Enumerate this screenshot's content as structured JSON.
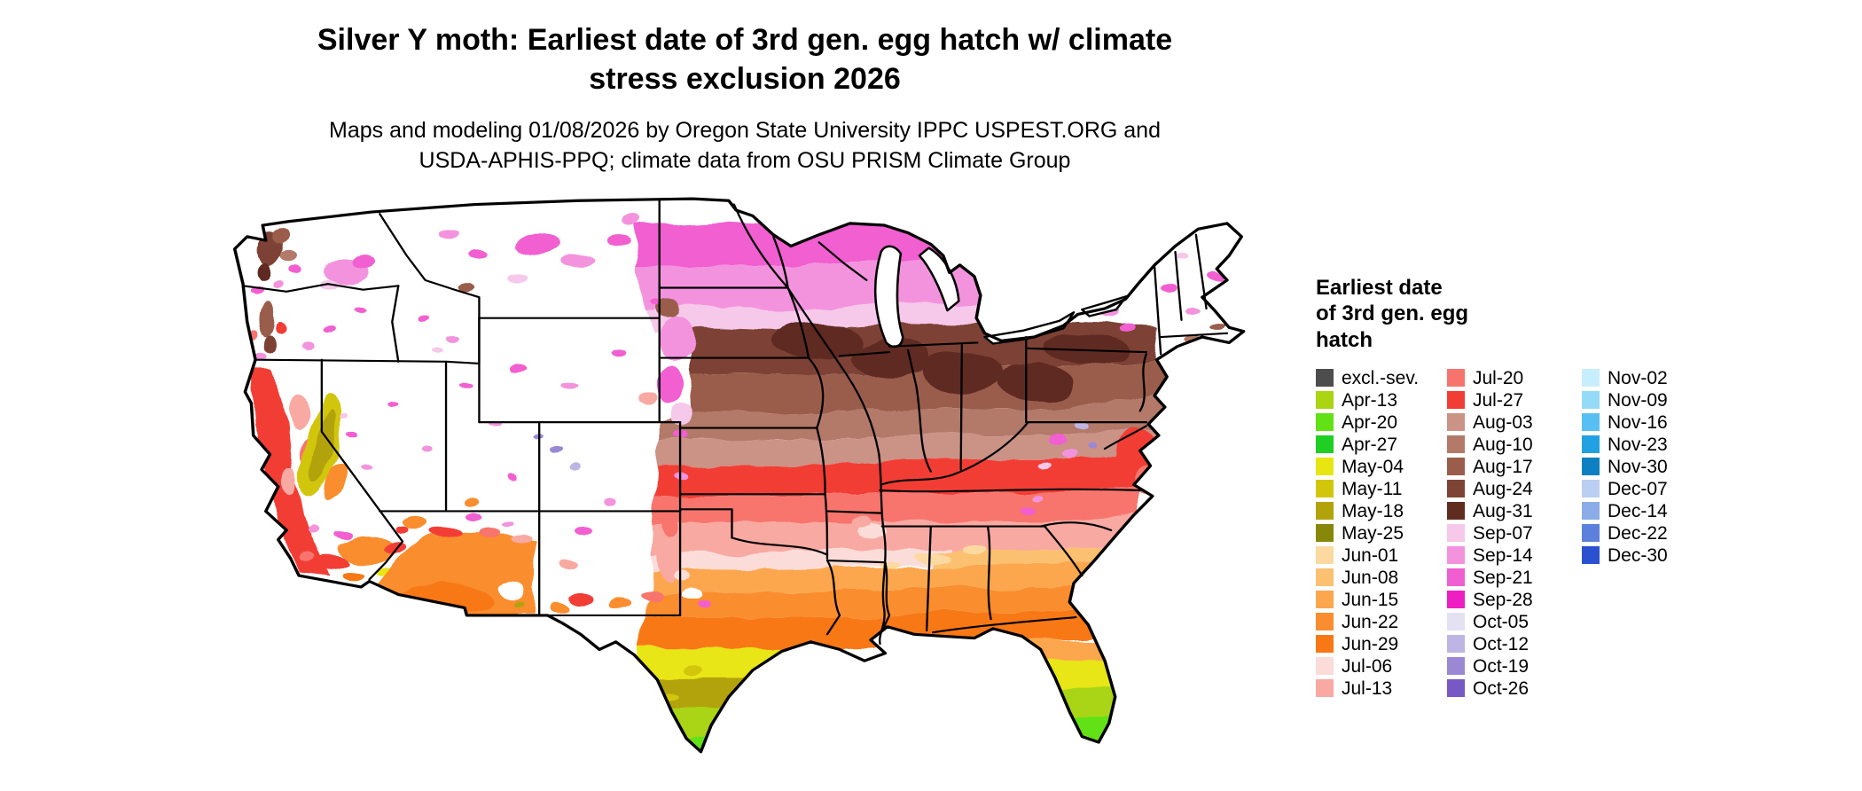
{
  "header": {
    "title_line1": "Silver Y moth: Earliest date of 3rd gen. egg hatch w/ climate",
    "title_line2": "stress exclusion 2026",
    "subtitle_line1": "Maps and modeling 01/08/2026 by Oregon State University IPPC USPEST.ORG and",
    "subtitle_line2": "USDA-APHIS-PPQ; climate data from OSU PRISM Climate Group"
  },
  "map": {
    "region_shown": "Continental United States",
    "kind": "raster choropleth of earliest egg-hatch date",
    "no_data_color": "#ffffff",
    "boundary_color": "#000000"
  },
  "legend": {
    "title": "Earliest date\nof 3rd gen. egg\nhatch",
    "columns": [
      {
        "items": [
          {
            "label": "excl.-sev.",
            "color": "#4d4d4d"
          },
          {
            "label": "Apr-13",
            "color": "#a9d513"
          },
          {
            "label": "Apr-20",
            "color": "#62e214"
          },
          {
            "label": "Apr-27",
            "color": "#1fcf23"
          },
          {
            "label": "May-04",
            "color": "#e8e612"
          },
          {
            "label": "May-11",
            "color": "#d2c60d"
          },
          {
            "label": "May-18",
            "color": "#b2a30a"
          },
          {
            "label": "May-25",
            "color": "#878709"
          },
          {
            "label": "Jun-01",
            "color": "#fcd9a0"
          },
          {
            "label": "Jun-08",
            "color": "#fcc071"
          },
          {
            "label": "Jun-15",
            "color": "#fca74e"
          },
          {
            "label": "Jun-22",
            "color": "#fa8d2f"
          },
          {
            "label": "Jun-29",
            "color": "#f87815"
          },
          {
            "label": "Jul-06",
            "color": "#fcdcd8"
          },
          {
            "label": "Jul-13",
            "color": "#f8a9a1"
          }
        ]
      },
      {
        "items": [
          {
            "label": "Jul-20",
            "color": "#f7746d"
          },
          {
            "label": "Jul-27",
            "color": "#f23d34"
          },
          {
            "label": "Aug-03",
            "color": "#cb9286"
          },
          {
            "label": "Aug-10",
            "color": "#b37969"
          },
          {
            "label": "Aug-17",
            "color": "#9b5d4b"
          },
          {
            "label": "Aug-24",
            "color": "#7d4335"
          },
          {
            "label": "Aug-31",
            "color": "#5f2c20"
          },
          {
            "label": "Sep-07",
            "color": "#f6c8ea"
          },
          {
            "label": "Sep-14",
            "color": "#f393de"
          },
          {
            "label": "Sep-21",
            "color": "#f15ed1"
          },
          {
            "label": "Sep-28",
            "color": "#ef1ec2"
          },
          {
            "label": "Oct-05",
            "color": "#e4e1f2"
          },
          {
            "label": "Oct-12",
            "color": "#bfb5e4"
          },
          {
            "label": "Oct-19",
            "color": "#9b88d4"
          },
          {
            "label": "Oct-26",
            "color": "#7659c4"
          }
        ]
      },
      {
        "items": [
          {
            "label": "Nov-02",
            "color": "#c7eefc"
          },
          {
            "label": "Nov-09",
            "color": "#94dbf8"
          },
          {
            "label": "Nov-16",
            "color": "#57bff1"
          },
          {
            "label": "Nov-23",
            "color": "#20a1e2"
          },
          {
            "label": "Nov-30",
            "color": "#0d80c2"
          },
          {
            "label": "Dec-07",
            "color": "#bacff1"
          },
          {
            "label": "Dec-14",
            "color": "#8bace7"
          },
          {
            "label": "Dec-22",
            "color": "#5b81dc"
          },
          {
            "label": "Dec-30",
            "color": "#2b51d1"
          }
        ]
      }
    ]
  }
}
